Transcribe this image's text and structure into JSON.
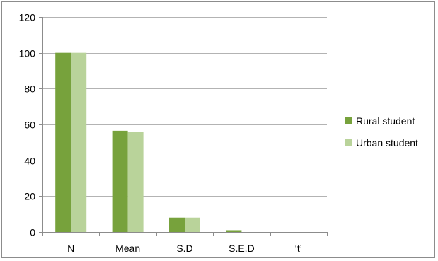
{
  "chart_data": {
    "type": "bar",
    "categories": [
      "N",
      "Mean",
      "S.D",
      "S.E.D",
      "‘t’"
    ],
    "series": [
      {
        "name": "Rural student",
        "values": [
          100,
          56.5,
          8,
          1,
          0
        ],
        "color": "#77a23c"
      },
      {
        "name": "Urban student",
        "values": [
          100,
          56,
          8,
          0,
          0
        ],
        "color": "#b9d39a"
      }
    ],
    "ylim": [
      0,
      120
    ],
    "yticks": [
      0,
      20,
      40,
      60,
      80,
      100,
      120
    ],
    "title": "",
    "xlabel": "",
    "ylabel": "",
    "grid": true,
    "legend_position": "right",
    "colors": {
      "grid": "#b3b3b3",
      "axis": "#8c8c8c",
      "border": "#8c8c8c"
    }
  }
}
